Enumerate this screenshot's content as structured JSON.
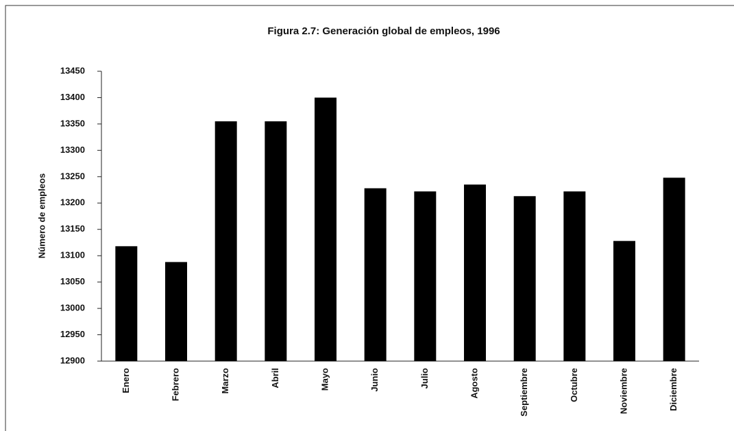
{
  "chart_data": {
    "type": "bar",
    "title": "Figura 2.7: Generación global de empleos, 1996",
    "y_label": "Número de empleos",
    "categories": [
      "Enero",
      "Febrero",
      "Marzo",
      "Abril",
      "Mayo",
      "Junio",
      "Julio",
      "Agosto",
      "Septiembre",
      "Octubre",
      "Noviembre",
      "Diciembre"
    ],
    "values": [
      13118,
      13088,
      13355,
      13355,
      13400,
      13228,
      13222,
      13235,
      13213,
      13222,
      13128,
      13248
    ],
    "color": "#000000",
    "ylim": [
      12900,
      13450
    ],
    "yticks": [
      12900,
      12950,
      13000,
      13050,
      13100,
      13150,
      13200,
      13250,
      13300,
      13350,
      13400,
      13450
    ],
    "grid": false
  }
}
